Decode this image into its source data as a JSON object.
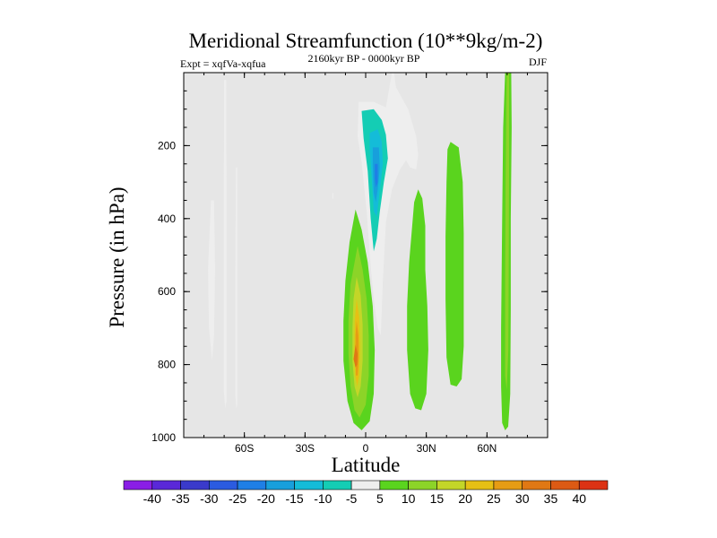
{
  "chart_data": {
    "type": "heatmap",
    "title": "Meridional Streamfunction (10**9kg/m-2)",
    "subtitle": "2160kyr BP - 0000kyr BP",
    "left_label": "Expt = xqfVa-xqfua",
    "right_label": "DJF",
    "xlabel": "Latitude",
    "ylabel": "Pressure (in hPa)",
    "xlim": [
      -90,
      90
    ],
    "ylim": [
      0,
      1000
    ],
    "y_inverted": true,
    "background_color": "#e6e6e6",
    "x_ticks": [
      {
        "value": -60,
        "label": "60S"
      },
      {
        "value": -30,
        "label": "30S"
      },
      {
        "value": 0,
        "label": "0"
      },
      {
        "value": 30,
        "label": "30N"
      },
      {
        "value": 60,
        "label": "60N"
      }
    ],
    "y_ticks": [
      {
        "value": 200,
        "label": "200"
      },
      {
        "value": 400,
        "label": "400"
      },
      {
        "value": 600,
        "label": "600"
      },
      {
        "value": 800,
        "label": "800"
      },
      {
        "value": 1000,
        "label": "1000"
      }
    ],
    "colorbar": {
      "labels": [
        "-40",
        "-35",
        "-30",
        "-25",
        "-20",
        "-15",
        "-10",
        "-5",
        "5",
        "10",
        "15",
        "20",
        "25",
        "30",
        "35",
        "40"
      ],
      "colors": [
        "#8a1ee6",
        "#5a28d8",
        "#3a3acb",
        "#2b5be0",
        "#1f7fe6",
        "#189fdc",
        "#14bcd8",
        "#14cdb4",
        "#eeeeee",
        "#5ad41e",
        "#8cd428",
        "#c3d628",
        "#e6c014",
        "#e69c14",
        "#e07814",
        "#dc5a14",
        "#dc3214"
      ]
    },
    "contour_regions": [
      {
        "name": "sh-thin-band-a",
        "value": -5,
        "points": [
          [
            -76.5,
            350
          ],
          [
            -75,
            350
          ],
          [
            -74.5,
            540
          ],
          [
            -75,
            720
          ],
          [
            -76,
            790
          ],
          [
            -77.5,
            700
          ],
          [
            -78,
            540
          ]
        ]
      },
      {
        "name": "sh-thin-band-b",
        "value": -5,
        "points": [
          [
            -70,
            20
          ],
          [
            -69,
            20
          ],
          [
            -68.8,
            400
          ],
          [
            -68.8,
            900
          ],
          [
            -69.5,
            920
          ],
          [
            -70.2,
            870
          ],
          [
            -70.2,
            400
          ]
        ]
      },
      {
        "name": "sh-thin-band-c",
        "value": -5,
        "points": [
          [
            -64.2,
            260
          ],
          [
            -63.5,
            260
          ],
          [
            -63.5,
            600
          ],
          [
            -63.5,
            910
          ],
          [
            -64,
            920
          ],
          [
            -64.5,
            880
          ],
          [
            -64.5,
            600
          ]
        ]
      },
      {
        "name": "sh-dot",
        "value": -5,
        "points": [
          [
            -16.5,
            330
          ],
          [
            -16,
            330
          ],
          [
            -16,
            345
          ],
          [
            -16.5,
            345
          ]
        ]
      },
      {
        "name": "trop-neg-outer",
        "value": -5,
        "points": [
          [
            -3.5,
            80
          ],
          [
            4,
            80
          ],
          [
            10,
            95
          ],
          [
            13,
            0
          ],
          [
            14,
            0
          ],
          [
            15,
            40
          ],
          [
            21,
            100
          ],
          [
            25,
            175
          ],
          [
            26,
            225
          ],
          [
            25,
            265
          ],
          [
            22,
            260
          ],
          [
            20,
            240
          ],
          [
            17,
            265
          ],
          [
            13,
            320
          ],
          [
            10,
            410
          ],
          [
            8.5,
            570
          ],
          [
            7.5,
            720
          ],
          [
            6,
            700
          ],
          [
            4,
            620
          ],
          [
            2.5,
            530
          ],
          [
            0.5,
            380
          ],
          [
            -2,
            245
          ],
          [
            -4,
            175
          ]
        ]
      },
      {
        "name": "trop-neg-10",
        "value": -10,
        "points": [
          [
            -2,
            105
          ],
          [
            4,
            100
          ],
          [
            8,
            130
          ],
          [
            10,
            170
          ],
          [
            11,
            235
          ],
          [
            9,
            300
          ],
          [
            7,
            380
          ],
          [
            5.5,
            455
          ],
          [
            4,
            490
          ],
          [
            2.5,
            400
          ],
          [
            1,
            270
          ],
          [
            -1,
            180
          ]
        ]
      },
      {
        "name": "trop-neg-15",
        "value": -15,
        "points": [
          [
            2,
            165
          ],
          [
            6,
            155
          ],
          [
            8,
            190
          ],
          [
            8.5,
            250
          ],
          [
            7,
            320
          ],
          [
            5.5,
            395
          ],
          [
            4,
            380
          ],
          [
            3,
            290
          ],
          [
            2,
            210
          ]
        ]
      },
      {
        "name": "trop-neg-20",
        "value": -20,
        "points": [
          [
            3.5,
            205
          ],
          [
            6.5,
            205
          ],
          [
            7,
            260
          ],
          [
            6,
            320
          ],
          [
            5,
            355
          ],
          [
            4,
            330
          ],
          [
            3.5,
            255
          ]
        ]
      },
      {
        "name": "trop-neg-25",
        "value": -25,
        "points": [
          [
            4.5,
            250
          ],
          [
            6,
            250
          ],
          [
            6,
            300
          ],
          [
            5,
            315
          ],
          [
            4.5,
            290
          ]
        ]
      },
      {
        "name": "sh-cell-5",
        "value": 5,
        "points": [
          [
            -5,
            375
          ],
          [
            -2,
            430
          ],
          [
            1,
            520
          ],
          [
            3.5,
            640
          ],
          [
            4.5,
            760
          ],
          [
            4,
            880
          ],
          [
            2,
            955
          ],
          [
            -2,
            980
          ],
          [
            -6,
            960
          ],
          [
            -9,
            900
          ],
          [
            -11,
            790
          ],
          [
            -11,
            680
          ],
          [
            -10,
            570
          ],
          [
            -8,
            465
          ]
        ]
      },
      {
        "name": "sh-cell-10",
        "value": 10,
        "points": [
          [
            -4,
            475
          ],
          [
            -1.5,
            540
          ],
          [
            0.5,
            620
          ],
          [
            1.5,
            720
          ],
          [
            1.5,
            830
          ],
          [
            0,
            910
          ],
          [
            -3,
            945
          ],
          [
            -5.5,
            925
          ],
          [
            -7.5,
            860
          ],
          [
            -8.5,
            770
          ],
          [
            -8.5,
            680
          ],
          [
            -7.5,
            580
          ]
        ]
      },
      {
        "name": "sh-cell-15",
        "value": 15,
        "points": [
          [
            -4.5,
            560
          ],
          [
            -2.5,
            610
          ],
          [
            -1.5,
            690
          ],
          [
            -1.5,
            790
          ],
          [
            -2.5,
            860
          ],
          [
            -4,
            890
          ],
          [
            -5.5,
            860
          ],
          [
            -6.5,
            790
          ],
          [
            -6.5,
            700
          ],
          [
            -6,
            620
          ]
        ]
      },
      {
        "name": "sh-cell-20",
        "value": 20,
        "points": [
          [
            -4.5,
            620
          ],
          [
            -3.2,
            670
          ],
          [
            -2.8,
            750
          ],
          [
            -3.2,
            830
          ],
          [
            -4.2,
            860
          ],
          [
            -5.2,
            830
          ],
          [
            -5.6,
            760
          ],
          [
            -5.4,
            680
          ]
        ]
      },
      {
        "name": "sh-cell-25",
        "value": 25,
        "points": [
          [
            -4.5,
            680
          ],
          [
            -3.6,
            720
          ],
          [
            -3.4,
            780
          ],
          [
            -4,
            830
          ],
          [
            -4.8,
            830
          ],
          [
            -5,
            770
          ],
          [
            -5,
            720
          ]
        ]
      },
      {
        "name": "sh-cell-30",
        "value": 30,
        "points": [
          [
            -5,
            745
          ],
          [
            -4,
            770
          ],
          [
            -4.2,
            800
          ],
          [
            -5,
            808
          ],
          [
            -6,
            785
          ]
        ]
      },
      {
        "name": "nh-cell-a",
        "value": 5,
        "points": [
          [
            26,
            320
          ],
          [
            28,
            345
          ],
          [
            29.5,
            420
          ],
          [
            29.5,
            540
          ],
          [
            30.5,
            640
          ],
          [
            31,
            760
          ],
          [
            30,
            880
          ],
          [
            27.5,
            925
          ],
          [
            24.5,
            920
          ],
          [
            22,
            880
          ],
          [
            20.5,
            760
          ],
          [
            20.5,
            640
          ],
          [
            21.5,
            520
          ],
          [
            23,
            420
          ],
          [
            24,
            355
          ]
        ]
      },
      {
        "name": "nh-cell-b",
        "value": 5,
        "points": [
          [
            42,
            190
          ],
          [
            46,
            205
          ],
          [
            48,
            300
          ],
          [
            48.5,
            440
          ],
          [
            48.5,
            600
          ],
          [
            48.5,
            750
          ],
          [
            47.5,
            840
          ],
          [
            45,
            860
          ],
          [
            42,
            855
          ],
          [
            40,
            780
          ],
          [
            39.5,
            620
          ],
          [
            39.5,
            450
          ],
          [
            40,
            300
          ],
          [
            40.5,
            210
          ]
        ]
      },
      {
        "name": "nh-band-5",
        "value": 5,
        "points": [
          [
            69,
            0
          ],
          [
            72,
            0
          ],
          [
            72.2,
            150
          ],
          [
            71.8,
            400
          ],
          [
            71.8,
            650
          ],
          [
            71.5,
            880
          ],
          [
            70.5,
            970
          ],
          [
            69,
            980
          ],
          [
            67.5,
            960
          ],
          [
            67,
            860
          ],
          [
            67,
            700
          ],
          [
            67.5,
            400
          ],
          [
            68,
            150
          ]
        ]
      },
      {
        "name": "nh-band-10",
        "value": 10,
        "points": [
          [
            69.8,
            0
          ],
          [
            71,
            0
          ],
          [
            71,
            200
          ],
          [
            70.8,
            500
          ],
          [
            70.6,
            760
          ],
          [
            69.8,
            870
          ],
          [
            69,
            830
          ],
          [
            69,
            560
          ],
          [
            69.2,
            300
          ]
        ]
      }
    ]
  }
}
